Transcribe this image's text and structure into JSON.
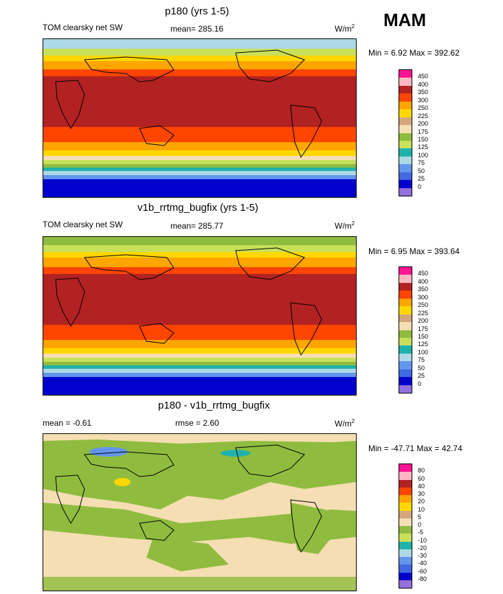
{
  "season": "MAM",
  "panels": [
    {
      "title": "p180 (yrs 1-5)",
      "left_label": "TOM clearsky net SW",
      "center_label": "mean= 285.16",
      "units_base": "W/m",
      "units_exp": "2",
      "minmax": "Min =   6.92 Max = 392.62",
      "levels": [
        "450",
        "400",
        "350",
        "300",
        "250",
        "225",
        "200",
        "175",
        "150",
        "125",
        "100",
        "75",
        "50",
        "25",
        "0"
      ],
      "colors": [
        "#ff1493",
        "#ffb6c1",
        "#b22222",
        "#ff4500",
        "#ffa500",
        "#ffd700",
        "#d2a679",
        "#f5deb3",
        "#8fbc3f",
        "#c8e05a",
        "#20b2aa",
        "#add8e6",
        "#6495ed",
        "#4169e1",
        "#0000cd",
        "#9370db"
      ]
    },
    {
      "title": "v1b_rrtmg_bugfix (yrs 1-5)",
      "left_label": "TOM clearsky net SW",
      "center_label": "mean= 285.77",
      "units_base": "W/m",
      "units_exp": "2",
      "minmax": "Min =   6.95 Max = 393.64",
      "levels": [
        "450",
        "400",
        "350",
        "300",
        "250",
        "225",
        "200",
        "175",
        "150",
        "125",
        "100",
        "75",
        "50",
        "25",
        "0"
      ],
      "colors": [
        "#ff1493",
        "#ffb6c1",
        "#b22222",
        "#ff4500",
        "#ffa500",
        "#ffd700",
        "#d2a679",
        "#f5deb3",
        "#8fbc3f",
        "#c8e05a",
        "#20b2aa",
        "#add8e6",
        "#6495ed",
        "#4169e1",
        "#0000cd",
        "#9370db"
      ]
    },
    {
      "title": "p180 - v1b_rrtmg_bugfix",
      "left_label": "mean =  -0.61",
      "center_label": "rmse =   2.60",
      "units_base": "W/m",
      "units_exp": "2",
      "minmax": "Min = -47.71 Max =  42.74",
      "levels": [
        "80",
        "60",
        "40",
        "30",
        "20",
        "10",
        "5",
        "0",
        "-5",
        "-10",
        "-20",
        "-30",
        "-40",
        "-60",
        "-80"
      ],
      "colors": [
        "#ff1493",
        "#ffb6c1",
        "#b22222",
        "#ff4500",
        "#ffa500",
        "#ffd700",
        "#d2a679",
        "#f5deb3",
        "#8fbc3f",
        "#c8e05a",
        "#20b2aa",
        "#add8e6",
        "#6495ed",
        "#4169e1",
        "#0000cd",
        "#9370db"
      ]
    }
  ],
  "chart_data": [
    {
      "type": "heatmap",
      "title": "p180 (yrs 1-5)",
      "variable": "TOM clearsky net SW",
      "units": "W/m2",
      "mean": 285.16,
      "min": 6.92,
      "max": 392.62,
      "contour_levels": [
        0,
        25,
        50,
        75,
        100,
        125,
        150,
        175,
        200,
        225,
        250,
        300,
        350,
        400,
        450
      ]
    },
    {
      "type": "heatmap",
      "title": "v1b_rrtmg_bugfix (yrs 1-5)",
      "variable": "TOM clearsky net SW",
      "units": "W/m2",
      "mean": 285.77,
      "min": 6.95,
      "max": 393.64,
      "contour_levels": [
        0,
        25,
        50,
        75,
        100,
        125,
        150,
        175,
        200,
        225,
        250,
        300,
        350,
        400,
        450
      ]
    },
    {
      "type": "heatmap",
      "title": "p180 - v1b_rrtmg_bugfix",
      "units": "W/m2",
      "mean": -0.61,
      "rmse": 2.6,
      "min": -47.71,
      "max": 42.74,
      "contour_levels": [
        -80,
        -60,
        -40,
        -30,
        -20,
        -10,
        -5,
        0,
        5,
        10,
        20,
        30,
        40,
        60,
        80
      ]
    }
  ]
}
